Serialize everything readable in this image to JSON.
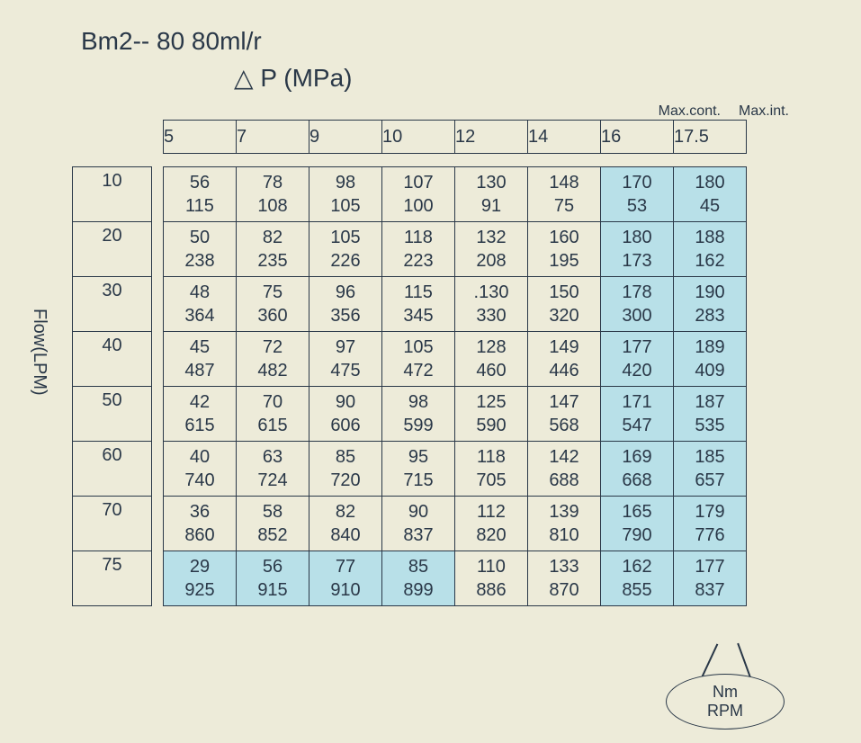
{
  "title": "Bm2-- 80  80ml/r",
  "subtitle": "△ P  (MPa)",
  "top_label_cont": "Max.cont.",
  "top_label_int": "Max.int.",
  "y_axis_label": "Flow(LPM)",
  "callout_line1": "Nm",
  "callout_line2": "RPM",
  "colors": {
    "background": "#edebd9",
    "text": "#2a3848",
    "border": "#2a3848",
    "highlight": "#b8e0e8"
  },
  "col_headers": [
    "5",
    "7",
    "9",
    "10",
    "12",
    "14",
    "16",
    "17.5"
  ],
  "row_headers": [
    "10",
    "20",
    "30",
    "40",
    "50",
    "60",
    "70",
    "75"
  ],
  "cells": [
    [
      [
        "56",
        "115"
      ],
      [
        "78",
        "108"
      ],
      [
        "98",
        "105"
      ],
      [
        "107",
        "100"
      ],
      [
        "130",
        "91"
      ],
      [
        "148",
        "75"
      ],
      [
        "170",
        "53"
      ],
      [
        "180",
        "45"
      ]
    ],
    [
      [
        "50",
        "238"
      ],
      [
        "82",
        "235"
      ],
      [
        "105",
        "226"
      ],
      [
        "118",
        "223"
      ],
      [
        "132",
        "208"
      ],
      [
        "160",
        "195"
      ],
      [
        "180",
        "173"
      ],
      [
        "188",
        "162"
      ]
    ],
    [
      [
        "48",
        "364"
      ],
      [
        "75",
        "360"
      ],
      [
        "96",
        "356"
      ],
      [
        "115",
        "345"
      ],
      [
        ".130",
        "330"
      ],
      [
        "150",
        "320"
      ],
      [
        "178",
        "300"
      ],
      [
        "190",
        "283"
      ]
    ],
    [
      [
        "45",
        "487"
      ],
      [
        "72",
        "482"
      ],
      [
        "97",
        "475"
      ],
      [
        "105",
        "472"
      ],
      [
        "128",
        "460"
      ],
      [
        "149",
        "446"
      ],
      [
        "177",
        "420"
      ],
      [
        "189",
        "409"
      ]
    ],
    [
      [
        "42",
        "615"
      ],
      [
        "70",
        "615"
      ],
      [
        "90",
        "606"
      ],
      [
        "98",
        "599"
      ],
      [
        "125",
        "590"
      ],
      [
        "147",
        "568"
      ],
      [
        "171",
        "547"
      ],
      [
        "187",
        "535"
      ]
    ],
    [
      [
        "40",
        "740"
      ],
      [
        "63",
        "724"
      ],
      [
        "85",
        "720"
      ],
      [
        "95",
        "715"
      ],
      [
        "118",
        "705"
      ],
      [
        "142",
        "688"
      ],
      [
        "169",
        "668"
      ],
      [
        "185",
        "657"
      ]
    ],
    [
      [
        "36",
        "860"
      ],
      [
        "58",
        "852"
      ],
      [
        "82",
        "840"
      ],
      [
        "90",
        "837"
      ],
      [
        "112",
        "820"
      ],
      [
        "139",
        "810"
      ],
      [
        "165",
        "790"
      ],
      [
        "179",
        "776"
      ]
    ],
    [
      [
        "29",
        "925"
      ],
      [
        "56",
        "915"
      ],
      [
        "77",
        "910"
      ],
      [
        "85",
        "899"
      ],
      [
        "110",
        "886"
      ],
      [
        "133",
        "870"
      ],
      [
        "162",
        "855"
      ],
      [
        "177",
        "837"
      ]
    ]
  ],
  "highlight_cols": [
    6,
    7
  ],
  "highlight_row": 7,
  "highlight_row_cols": [
    0,
    1,
    2,
    3
  ]
}
